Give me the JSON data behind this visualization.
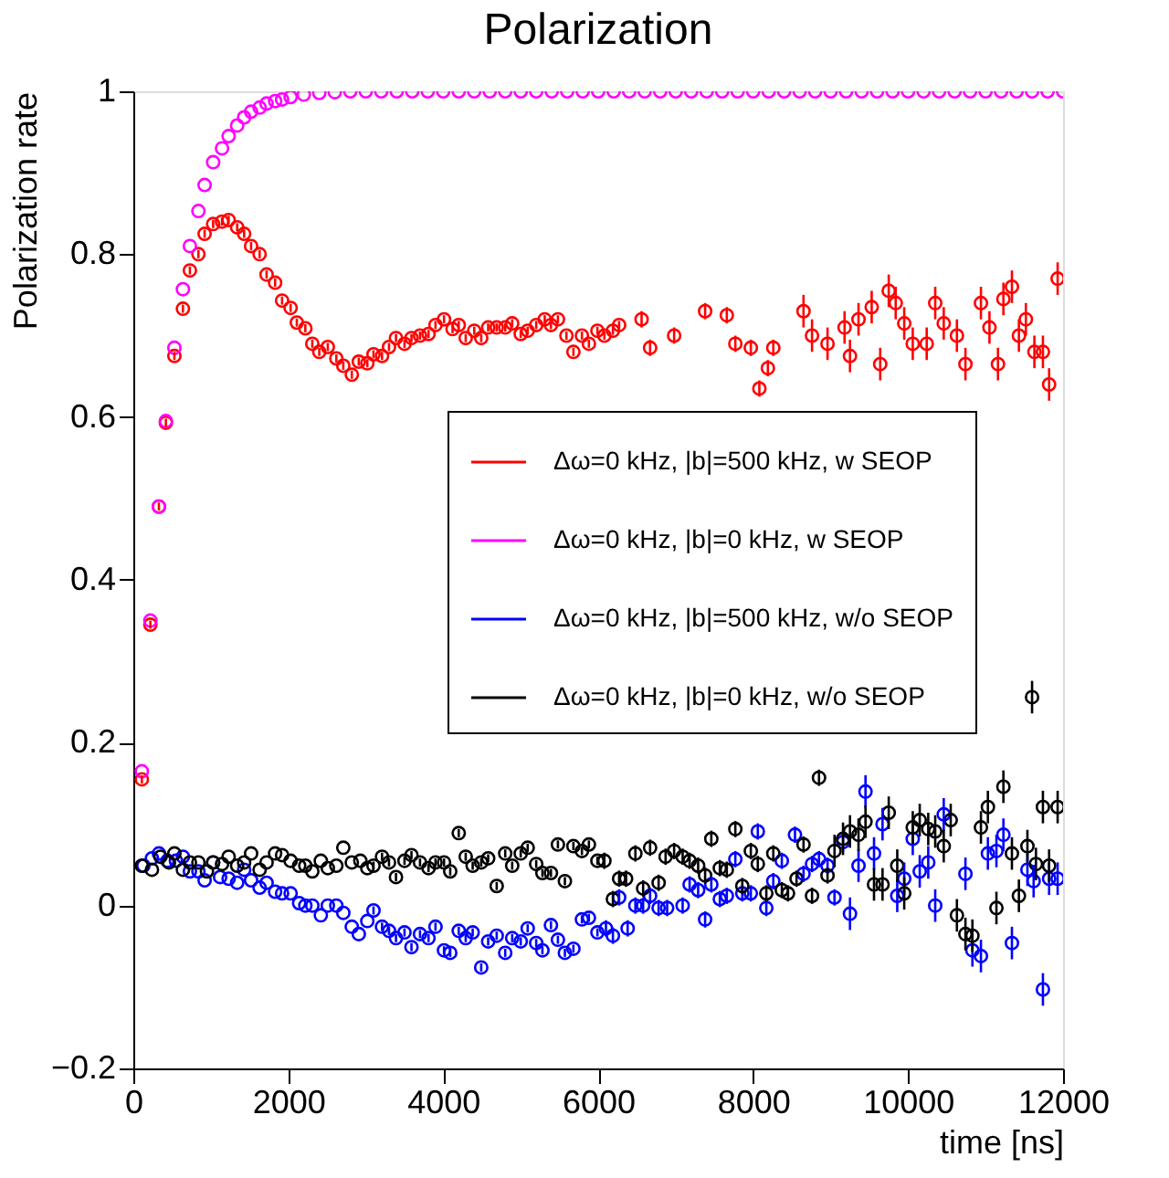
{
  "chart_data": {
    "type": "scatter",
    "title": "Polarization",
    "xlabel": "time [ns]",
    "ylabel": "Polarization rate",
    "xlim": [
      0,
      12000
    ],
    "xticks": [
      0,
      2000,
      4000,
      6000,
      8000,
      10000,
      12000
    ],
    "ylim": [
      -0.2,
      1
    ],
    "yticks": [
      -0.2,
      0,
      0.2,
      0.4,
      0.6,
      0.8,
      1
    ],
    "grid": false,
    "legend": "right",
    "marker": "circle",
    "series": [
      {
        "name": "Δω=0 kHz, |b|=500 kHz, w SEOP",
        "color": "#ff0000",
        "x": [
          110,
          220,
          330,
          420,
          530,
          640,
          730,
          840,
          920,
          1030,
          1145,
          1230,
          1340,
          1430,
          1520,
          1630,
          1720,
          1830,
          1920,
          2030,
          2110,
          2220,
          2310,
          2400,
          2510,
          2620,
          2710,
          2820,
          2910,
          3020,
          3100,
          3210,
          3300,
          3390,
          3500,
          3590,
          3700,
          3810,
          3900,
          4010,
          4120,
          4200,
          4290,
          4400,
          4490,
          4580,
          4690,
          4800,
          4890,
          5000,
          5090,
          5200,
          5310,
          5390,
          5480,
          5590,
          5680,
          5790,
          5880,
          5990,
          6080,
          6190,
          6270,
          6560,
          6670,
          6980,
          7380,
          7660,
          7770,
          7970,
          8080,
          8190,
          8260,
          8650,
          8760,
          8960,
          9180,
          9250,
          9360,
          9530,
          9640,
          9750,
          9840,
          9950,
          10060,
          10240,
          10350,
          10460,
          10630,
          10740,
          10940,
          11050,
          11160,
          11230,
          11340,
          11430,
          11520,
          11630,
          11740,
          11820,
          11930
        ],
        "values": [
          0.155,
          0.345,
          0.49,
          0.593,
          0.675,
          0.733,
          0.78,
          0.8,
          0.825,
          0.837,
          0.84,
          0.842,
          0.833,
          0.825,
          0.81,
          0.8,
          0.775,
          0.765,
          0.743,
          0.734,
          0.716,
          0.709,
          0.69,
          0.68,
          0.686,
          0.672,
          0.663,
          0.652,
          0.668,
          0.666,
          0.677,
          0.675,
          0.686,
          0.697,
          0.69,
          0.697,
          0.7,
          0.702,
          0.713,
          0.72,
          0.708,
          0.713,
          0.697,
          0.706,
          0.697,
          0.71,
          0.71,
          0.71,
          0.715,
          0.702,
          0.706,
          0.713,
          0.72,
          0.713,
          0.72,
          0.7,
          0.68,
          0.7,
          0.69,
          0.706,
          0.7,
          0.706,
          0.713,
          0.72,
          0.685,
          0.7,
          0.73,
          0.725,
          0.69,
          0.685,
          0.635,
          0.66,
          0.685,
          0.73,
          0.7,
          0.69,
          0.71,
          0.675,
          0.72,
          0.735,
          0.665,
          0.755,
          0.74,
          0.715,
          0.69,
          0.69,
          0.74,
          0.715,
          0.7,
          0.665,
          0.74,
          0.71,
          0.665,
          0.745,
          0.76,
          0.7,
          0.72,
          0.68,
          0.68,
          0.64,
          0.77
        ],
        "errors": [
          0.005,
          0.005,
          0.005,
          0.005,
          0.005,
          0.005,
          0.005,
          0.005,
          0.005,
          0.005,
          0.005,
          0.005,
          0.005,
          0.005,
          0.005,
          0.005,
          0.005,
          0.005,
          0.005,
          0.005,
          0.005,
          0.005,
          0.005,
          0.005,
          0.005,
          0.005,
          0.005,
          0.005,
          0.005,
          0.005,
          0.005,
          0.005,
          0.005,
          0.005,
          0.005,
          0.005,
          0.005,
          0.005,
          0.005,
          0.005,
          0.005,
          0.005,
          0.005,
          0.005,
          0.005,
          0.005,
          0.005,
          0.005,
          0.005,
          0.005,
          0.005,
          0.005,
          0.005,
          0.005,
          0.005,
          0.005,
          0.005,
          0.005,
          0.005,
          0.005,
          0.005,
          0.005,
          0.005,
          0.01,
          0.01,
          0.01,
          0.01,
          0.01,
          0.01,
          0.01,
          0.01,
          0.01,
          0.01,
          0.02,
          0.02,
          0.02,
          0.02,
          0.02,
          0.02,
          0.02,
          0.02,
          0.02,
          0.02,
          0.02,
          0.02,
          0.02,
          0.02,
          0.02,
          0.02,
          0.02,
          0.02,
          0.02,
          0.02,
          0.02,
          0.02,
          0.02,
          0.02,
          0.02,
          0.02,
          0.02,
          0.02
        ]
      },
      {
        "name": "Δω=0 kHz, |b|=0 kHz, w SEOP",
        "color": "#ff00ff",
        "x": [
          110,
          220,
          330,
          420,
          530,
          640,
          730,
          840,
          920,
          1030,
          1145,
          1230,
          1340,
          1430,
          1520,
          1630,
          1720,
          1830,
          1920,
          2030,
          2200,
          2400,
          2600,
          2800,
          3000,
          3200,
          3400,
          3600,
          3800,
          4000,
          4200,
          4400,
          4600,
          4800,
          5000,
          5200,
          5400,
          5600,
          5800,
          6000,
          6200,
          6400,
          6600,
          6800,
          7000,
          7200,
          7400,
          7600,
          7800,
          8000,
          8200,
          8400,
          8600,
          8800,
          9000,
          9200,
          9400,
          9600,
          9800,
          10000,
          10200,
          10400,
          10600,
          10800,
          11000,
          11200,
          11400,
          11600,
          11800,
          12000
        ],
        "values": [
          0.165,
          0.35,
          0.49,
          0.595,
          0.685,
          0.757,
          0.81,
          0.853,
          0.885,
          0.913,
          0.93,
          0.945,
          0.958,
          0.968,
          0.975,
          0.98,
          0.985,
          0.988,
          0.99,
          0.993,
          0.996,
          0.998,
          0.999,
          1,
          1,
          1,
          1,
          1,
          1,
          1,
          1,
          1,
          1,
          1,
          1,
          1,
          1,
          1,
          1,
          1,
          1,
          1,
          1,
          1,
          1,
          1,
          1,
          1,
          1,
          1,
          1,
          1,
          1,
          1,
          1,
          1,
          1,
          1,
          1,
          1,
          1,
          1,
          1,
          1,
          1,
          1,
          1,
          1,
          1,
          1
        ]
      },
      {
        "name": "Δω=0 kHz, |b|=500 kHz, w/o SEOP",
        "color": "#0000ff",
        "x": [
          130,
          240,
          330,
          440,
          550,
          640,
          730,
          840,
          920,
          1030,
          1120,
          1230,
          1340,
          1430,
          1520,
          1630,
          1720,
          1830,
          1920,
          2030,
          2140,
          2220,
          2310,
          2420,
          2510,
          2620,
          2710,
          2820,
          2910,
          3020,
          3100,
          3210,
          3300,
          3390,
          3500,
          3590,
          3700,
          3810,
          3900,
          4010,
          4090,
          4200,
          4290,
          4380,
          4490,
          4580,
          4690,
          4800,
          4890,
          5000,
          5090,
          5200,
          5280,
          5390,
          5480,
          5570,
          5680,
          5790,
          5880,
          5990,
          6100,
          6190,
          6270,
          6380,
          6480,
          6580,
          6670,
          6780,
          6890,
          7090,
          7180,
          7290,
          7380,
          7460,
          7570,
          7660,
          7770,
          7860,
          7970,
          8060,
          8170,
          8260,
          8370,
          8540,
          8650,
          8760,
          8850,
          8960,
          9050,
          9160,
          9250,
          9360,
          9450,
          9560,
          9670,
          9860,
          9950,
          10060,
          10150,
          10260,
          10350,
          10460,
          10740,
          10830,
          10940,
          11030,
          11140,
          11230,
          11340,
          11540,
          11620,
          11740,
          11820,
          11930
        ],
        "values": [
          0.049,
          0.058,
          0.064,
          0.055,
          0.055,
          0.06,
          0.042,
          0.042,
          0.031,
          0.053,
          0.035,
          0.033,
          0.028,
          0.044,
          0.031,
          0.022,
          0.028,
          0.017,
          0.015,
          0.015,
          0.003,
          0,
          0,
          -0.012,
          0,
          0,
          -0.009,
          -0.026,
          -0.035,
          -0.019,
          -0.006,
          -0.026,
          -0.031,
          -0.04,
          -0.033,
          -0.051,
          -0.035,
          -0.04,
          -0.026,
          -0.055,
          -0.058,
          -0.031,
          -0.04,
          -0.033,
          -0.076,
          -0.044,
          -0.037,
          -0.058,
          -0.04,
          -0.044,
          -0.028,
          -0.046,
          -0.055,
          -0.024,
          -0.042,
          -0.058,
          -0.053,
          -0.017,
          -0.015,
          -0.033,
          -0.028,
          -0.037,
          0.01,
          -0.028,
          0,
          0,
          0.012,
          -0.003,
          -0.003,
          0,
          0.026,
          0.019,
          -0.017,
          0.026,
          0.008,
          0.012,
          0.057,
          0.015,
          0.015,
          0.091,
          -0.003,
          0.03,
          0.055,
          0.087,
          0.039,
          0.051,
          0.057,
          0.049,
          0.01,
          0.078,
          -0.01,
          0.049,
          0.14,
          0.064,
          0.1,
          0.012,
          0.033,
          0.082,
          0.042,
          0.053,
          0,
          0.112,
          0.039,
          -0.055,
          -0.062,
          0.064,
          0.067,
          0.087,
          -0.046,
          0.044,
          0.03,
          -0.103,
          0.033,
          0.033
        ],
        "errors": [
          null,
          null,
          null,
          null,
          null,
          null,
          null,
          null,
          null,
          null,
          null,
          null,
          null,
          null,
          null,
          null,
          null,
          null,
          null,
          null,
          null,
          null,
          null,
          null,
          null,
          null,
          null,
          null,
          null,
          null,
          0.005,
          0.005,
          0.005,
          0.005,
          0.005,
          0.005,
          0.005,
          0.005,
          0.005,
          0.005,
          0.005,
          0.005,
          0.005,
          0.005,
          0.005,
          0.005,
          0.005,
          0.005,
          0.005,
          0.005,
          0.005,
          0.005,
          0.005,
          0.005,
          0.005,
          0.005,
          0.005,
          0.005,
          0.005,
          0.005,
          0.01,
          0.01,
          0.01,
          0.01,
          0.01,
          0.01,
          0.01,
          0.01,
          0.01,
          0.01,
          0.01,
          0.01,
          0.01,
          0.01,
          0.01,
          0.01,
          0.01,
          0.01,
          0.01,
          0.01,
          0.01,
          0.01,
          0.01,
          0.01,
          0.01,
          0.01,
          0.01,
          0.01,
          0.01,
          0.01,
          0.02,
          0.02,
          0.02,
          0.02,
          0.02,
          0.02,
          0.02,
          0.02,
          0.02,
          0.02,
          0.02,
          0.02,
          0.02,
          0.02,
          0.02,
          0.02,
          0.02,
          0.02,
          0.02,
          0.02,
          0.02,
          0.02,
          0.02,
          0.02
        ]
      },
      {
        "name": "Δω=0 kHz, |b|=0 kHz, w/o SEOP",
        "color": "#000000",
        "x": [
          110,
          240,
          350,
          460,
          530,
          640,
          730,
          840,
          950,
          1030,
          1145,
          1230,
          1340,
          1430,
          1520,
          1630,
          1720,
          1830,
          1920,
          2030,
          2140,
          2220,
          2310,
          2420,
          2510,
          2620,
          2710,
          2820,
          2930,
          3020,
          3100,
          3210,
          3300,
          3390,
          3500,
          3590,
          3700,
          3810,
          3900,
          4010,
          4090,
          4200,
          4290,
          4380,
          4490,
          4580,
          4690,
          4800,
          4890,
          5000,
          5090,
          5200,
          5280,
          5390,
          5480,
          5570,
          5680,
          5790,
          5880,
          5990,
          6080,
          6190,
          6270,
          6360,
          6480,
          6580,
          6670,
          6780,
          6870,
          6980,
          7090,
          7180,
          7290,
          7380,
          7460,
          7570,
          7660,
          7770,
          7860,
          7970,
          8060,
          8170,
          8260,
          8370,
          8450,
          8560,
          8650,
          8760,
          8850,
          8960,
          9050,
          9160,
          9250,
          9360,
          9450,
          9560,
          9670,
          9750,
          9860,
          9950,
          10060,
          10150,
          10260,
          10350,
          10460,
          10550,
          10630,
          10740,
          10830,
          10940,
          11030,
          11140,
          11230,
          11340,
          11430,
          11540,
          11600,
          11650,
          11740,
          11820,
          11930
        ],
        "values": [
          0.049,
          0.044,
          0.06,
          0.053,
          0.064,
          0.044,
          0.053,
          0.053,
          0.042,
          0.053,
          0.051,
          0.06,
          0.049,
          0.053,
          0.064,
          0.044,
          0.053,
          0.064,
          0.062,
          0.055,
          0.049,
          0.049,
          0.042,
          0.055,
          0.046,
          0.049,
          0.071,
          0.053,
          0.055,
          0.046,
          0.049,
          0.06,
          0.053,
          0.035,
          0.055,
          0.062,
          0.053,
          0.046,
          0.053,
          0.053,
          0.042,
          0.089,
          0.06,
          0.049,
          0.053,
          0.058,
          0.024,
          0.064,
          0.049,
          0.064,
          0.071,
          0.051,
          0.04,
          0.04,
          0.075,
          0.03,
          0.073,
          0.067,
          0.075,
          0.055,
          0.055,
          0.008,
          0.033,
          0.033,
          0.064,
          0.021,
          0.071,
          0.028,
          0.06,
          0.067,
          0.06,
          0.055,
          0.049,
          0.037,
          0.082,
          0.046,
          0.044,
          0.094,
          0.024,
          0.067,
          0.051,
          0.015,
          0.064,
          0.019,
          0.015,
          0.033,
          0.075,
          0.012,
          0.157,
          0.037,
          0.067,
          0.082,
          0.091,
          0.087,
          0.103,
          0.026,
          0.026,
          0.114,
          0.049,
          0.015,
          0.096,
          0.105,
          0.094,
          0.091,
          0.073,
          0.105,
          -0.012,
          -0.035,
          -0.037,
          0.096,
          0.121,
          -0.003,
          0.146,
          0.064,
          0.012,
          0.073,
          0.256,
          0.051,
          0.121,
          0.049,
          0.121
        ],
        "errors": [
          null,
          null,
          null,
          null,
          null,
          null,
          null,
          null,
          null,
          null,
          null,
          null,
          null,
          null,
          null,
          null,
          null,
          null,
          null,
          null,
          null,
          null,
          null,
          null,
          null,
          null,
          null,
          null,
          null,
          null,
          0.005,
          0.005,
          0.005,
          0.005,
          0.005,
          0.005,
          0.005,
          0.005,
          0.005,
          0.005,
          0.005,
          0.005,
          0.005,
          0.005,
          0.005,
          0.005,
          0.005,
          0.005,
          0.005,
          0.005,
          0.005,
          0.005,
          0.005,
          0.005,
          0.005,
          0.005,
          0.005,
          0.005,
          0.005,
          0.005,
          0.01,
          0.01,
          0.01,
          0.01,
          0.01,
          0.01,
          0.01,
          0.01,
          0.01,
          0.01,
          0.01,
          0.01,
          0.01,
          0.01,
          0.01,
          0.01,
          0.01,
          0.01,
          0.01,
          0.01,
          0.01,
          0.01,
          0.01,
          0.01,
          0.01,
          0.01,
          0.01,
          0.01,
          0.01,
          0.01,
          0.02,
          0.02,
          0.02,
          0.02,
          0.02,
          0.02,
          0.02,
          0.02,
          0.02,
          0.02,
          0.02,
          0.02,
          0.02,
          0.02,
          0.02,
          0.02,
          0.02,
          0.02,
          0.02,
          0.02,
          0.02,
          0.02,
          0.02,
          0.02,
          0.02,
          0.02,
          0.02,
          0.02,
          0.02,
          0.02,
          0.02
        ]
      }
    ]
  }
}
